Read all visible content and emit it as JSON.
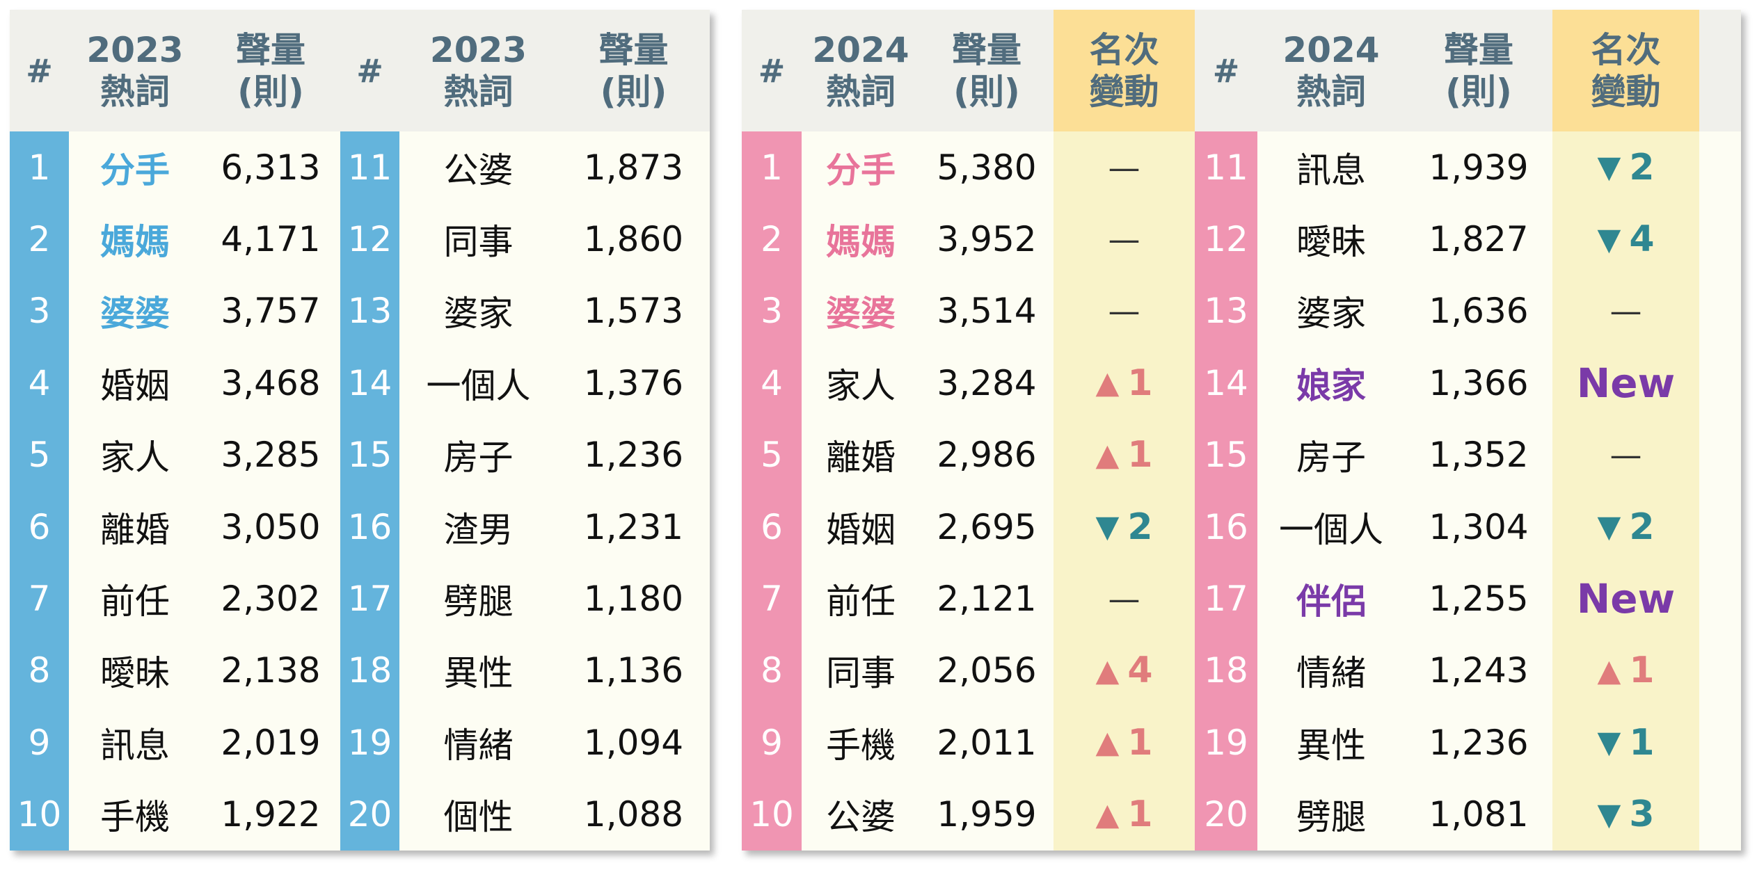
{
  "colors": {
    "header_text": "#506c7d",
    "rank_2023_bg": "#64b4dc",
    "rank_2024_bg": "#f095b2",
    "highlight_2023": "#4aa8da",
    "highlight_2024": "#e8749a",
    "new_word": "#7a3aa8",
    "up_arrow": "#e07c7c",
    "down_arrow": "#2f8791",
    "change_header_bg": "#fcdf96",
    "change_col_bg": "#f9f3c9"
  },
  "table_2023": {
    "headers": {
      "rank": "#",
      "word": [
        "2023",
        "熱詞"
      ],
      "count": [
        "聲量",
        "(則)"
      ]
    },
    "rows": [
      {
        "rank": "1",
        "word": "分手",
        "count": "6,313",
        "highlight": true
      },
      {
        "rank": "2",
        "word": "媽媽",
        "count": "4,171",
        "highlight": true
      },
      {
        "rank": "3",
        "word": "婆婆",
        "count": "3,757",
        "highlight": true
      },
      {
        "rank": "4",
        "word": "婚姻",
        "count": "3,468"
      },
      {
        "rank": "5",
        "word": "家人",
        "count": "3,285"
      },
      {
        "rank": "6",
        "word": "離婚",
        "count": "3,050"
      },
      {
        "rank": "7",
        "word": "前任",
        "count": "2,302"
      },
      {
        "rank": "8",
        "word": "曖昧",
        "count": "2,138"
      },
      {
        "rank": "9",
        "word": "訊息",
        "count": "2,019"
      },
      {
        "rank": "10",
        "word": "手機",
        "count": "1,922"
      },
      {
        "rank": "11",
        "word": "公婆",
        "count": "1,873"
      },
      {
        "rank": "12",
        "word": "同事",
        "count": "1,860"
      },
      {
        "rank": "13",
        "word": "婆家",
        "count": "1,573"
      },
      {
        "rank": "14",
        "word": "一個人",
        "count": "1,376"
      },
      {
        "rank": "15",
        "word": "房子",
        "count": "1,236"
      },
      {
        "rank": "16",
        "word": "渣男",
        "count": "1,231"
      },
      {
        "rank": "17",
        "word": "劈腿",
        "count": "1,180"
      },
      {
        "rank": "18",
        "word": "異性",
        "count": "1,136"
      },
      {
        "rank": "19",
        "word": "情緒",
        "count": "1,094"
      },
      {
        "rank": "20",
        "word": "個性",
        "count": "1,088"
      }
    ]
  },
  "table_2024": {
    "headers": {
      "rank": "#",
      "word": [
        "2024",
        "熱詞"
      ],
      "count": [
        "聲量",
        "(則)"
      ],
      "change": [
        "名次",
        "變動"
      ]
    },
    "rows": [
      {
        "rank": "1",
        "word": "分手",
        "count": "5,380",
        "highlight": true,
        "change": {
          "type": "same",
          "text": "—"
        }
      },
      {
        "rank": "2",
        "word": "媽媽",
        "count": "3,952",
        "highlight": true,
        "change": {
          "type": "same",
          "text": "—"
        }
      },
      {
        "rank": "3",
        "word": "婆婆",
        "count": "3,514",
        "highlight": true,
        "change": {
          "type": "same",
          "text": "—"
        }
      },
      {
        "rank": "4",
        "word": "家人",
        "count": "3,284",
        "change": {
          "type": "up",
          "text": "1"
        }
      },
      {
        "rank": "5",
        "word": "離婚",
        "count": "2,986",
        "change": {
          "type": "up",
          "text": "1"
        }
      },
      {
        "rank": "6",
        "word": "婚姻",
        "count": "2,695",
        "change": {
          "type": "down",
          "text": "2"
        }
      },
      {
        "rank": "7",
        "word": "前任",
        "count": "2,121",
        "change": {
          "type": "same",
          "text": "—"
        }
      },
      {
        "rank": "8",
        "word": "同事",
        "count": "2,056",
        "change": {
          "type": "up",
          "text": "4"
        }
      },
      {
        "rank": "9",
        "word": "手機",
        "count": "2,011",
        "change": {
          "type": "up",
          "text": "1"
        }
      },
      {
        "rank": "10",
        "word": "公婆",
        "count": "1,959",
        "change": {
          "type": "up",
          "text": "1"
        }
      },
      {
        "rank": "11",
        "word": "訊息",
        "count": "1,939",
        "change": {
          "type": "down",
          "text": "2"
        }
      },
      {
        "rank": "12",
        "word": "曖昧",
        "count": "1,827",
        "change": {
          "type": "down",
          "text": "4"
        }
      },
      {
        "rank": "13",
        "word": "婆家",
        "count": "1,636",
        "change": {
          "type": "same",
          "text": "—"
        }
      },
      {
        "rank": "14",
        "word": "娘家",
        "count": "1,366",
        "new": true,
        "change": {
          "type": "new",
          "text": "New"
        }
      },
      {
        "rank": "15",
        "word": "房子",
        "count": "1,352",
        "change": {
          "type": "same",
          "text": "—"
        }
      },
      {
        "rank": "16",
        "word": "一個人",
        "count": "1,304",
        "change": {
          "type": "down",
          "text": "2"
        }
      },
      {
        "rank": "17",
        "word": "伴侶",
        "count": "1,255",
        "new": true,
        "change": {
          "type": "new",
          "text": "New"
        }
      },
      {
        "rank": "18",
        "word": "情緒",
        "count": "1,243",
        "change": {
          "type": "up",
          "text": "1"
        }
      },
      {
        "rank": "19",
        "word": "異性",
        "count": "1,236",
        "change": {
          "type": "down",
          "text": "1"
        }
      },
      {
        "rank": "20",
        "word": "劈腿",
        "count": "1,081",
        "change": {
          "type": "down",
          "text": "3"
        }
      }
    ]
  }
}
